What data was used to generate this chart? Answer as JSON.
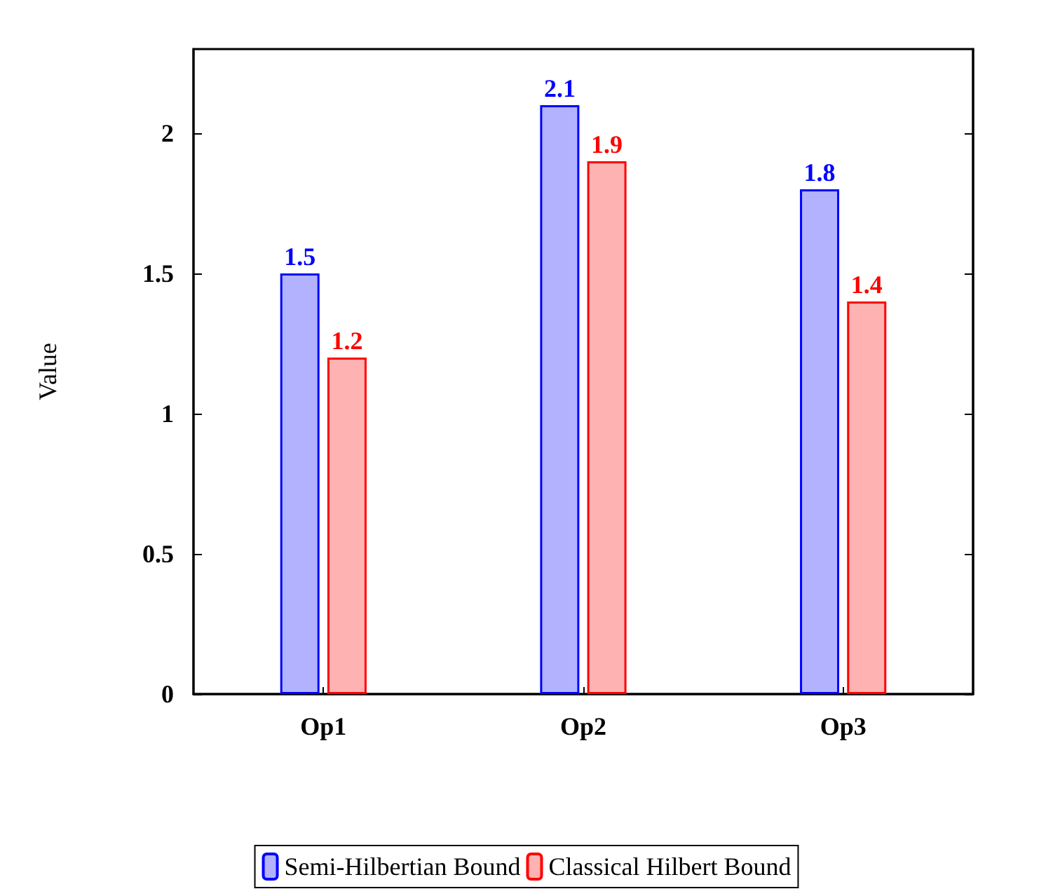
{
  "chart_data": {
    "type": "bar",
    "ylabel": "Value",
    "categories": [
      "Op1",
      "Op2",
      "Op3"
    ],
    "series": [
      {
        "name": "Semi-Hilbertian Bound",
        "color": "#0000ff",
        "values": [
          1.5,
          2.1,
          1.8
        ]
      },
      {
        "name": "Classical Hilbert Bound",
        "color": "#ff0000",
        "values": [
          1.2,
          1.9,
          1.4
        ]
      }
    ],
    "ylim": [
      0,
      2.3
    ],
    "yticks": [
      0,
      0.5,
      1,
      1.5,
      2
    ],
    "grid": false,
    "legend": "bottom",
    "data_labels": true
  }
}
